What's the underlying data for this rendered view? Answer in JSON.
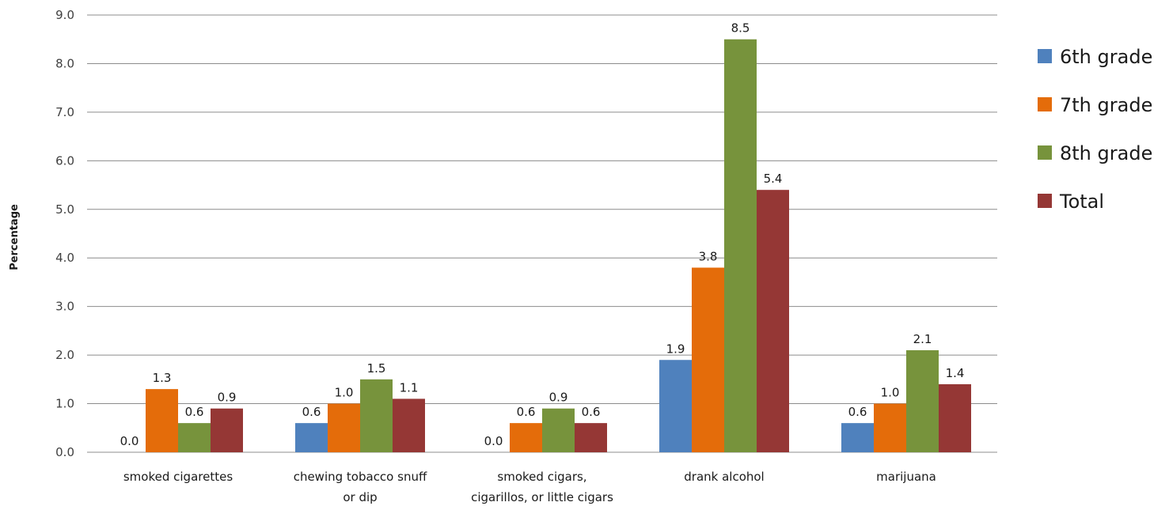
{
  "chart_data": {
    "type": "bar",
    "title": "",
    "xlabel": "",
    "ylabel": "Percentage",
    "ylim": [
      0,
      9
    ],
    "ytick_step": 1,
    "yticks": [
      "0.0",
      "1.0",
      "2.0",
      "3.0",
      "4.0",
      "5.0",
      "6.0",
      "7.0",
      "8.0",
      "9.0"
    ],
    "grid": true,
    "legend_position": "right",
    "categories": [
      [
        "smoked cigarettes"
      ],
      [
        "chewing tobacco snuff",
        "or dip"
      ],
      [
        "smoked cigars,",
        "cigarillos, or little cigars"
      ],
      [
        "drank alcohol"
      ],
      [
        "marijuana"
      ]
    ],
    "series": [
      {
        "name": "6th grade",
        "color": "#4f81bd",
        "values": [
          0.0,
          0.6,
          0.0,
          1.9,
          0.6
        ]
      },
      {
        "name": "7th grade",
        "color": "#e46c0a",
        "values": [
          1.3,
          1.0,
          0.6,
          3.8,
          1.0
        ]
      },
      {
        "name": "8th grade",
        "color": "#77933c",
        "values": [
          0.6,
          1.5,
          0.9,
          8.5,
          2.1
        ]
      },
      {
        "name": "Total",
        "color": "#953735",
        "values": [
          0.9,
          1.1,
          0.6,
          5.4,
          1.4
        ]
      }
    ]
  }
}
